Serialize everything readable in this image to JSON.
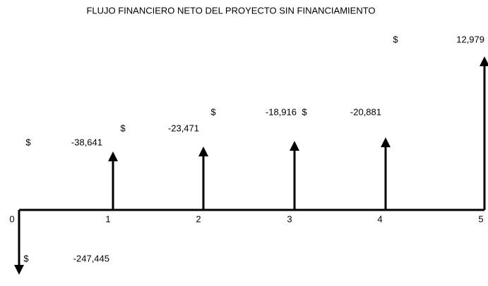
{
  "title": "FLUJO FINANCIERO NETO DEL PROYECTO SIN FINANCIAMIENTO",
  "periods": [
    "0",
    "1",
    "2",
    "3",
    "4",
    "5"
  ],
  "flows": [
    {
      "currency": "$",
      "amount": "-247,445"
    },
    {
      "currency": "$",
      "amount": "-38,641"
    },
    {
      "currency": "$",
      "amount": "-23,471"
    },
    {
      "currency": "$",
      "amount": "-18,916"
    },
    {
      "currency": "$",
      "amount": "-20,881"
    },
    {
      "currency": "$",
      "amount": "12,979"
    }
  ]
}
